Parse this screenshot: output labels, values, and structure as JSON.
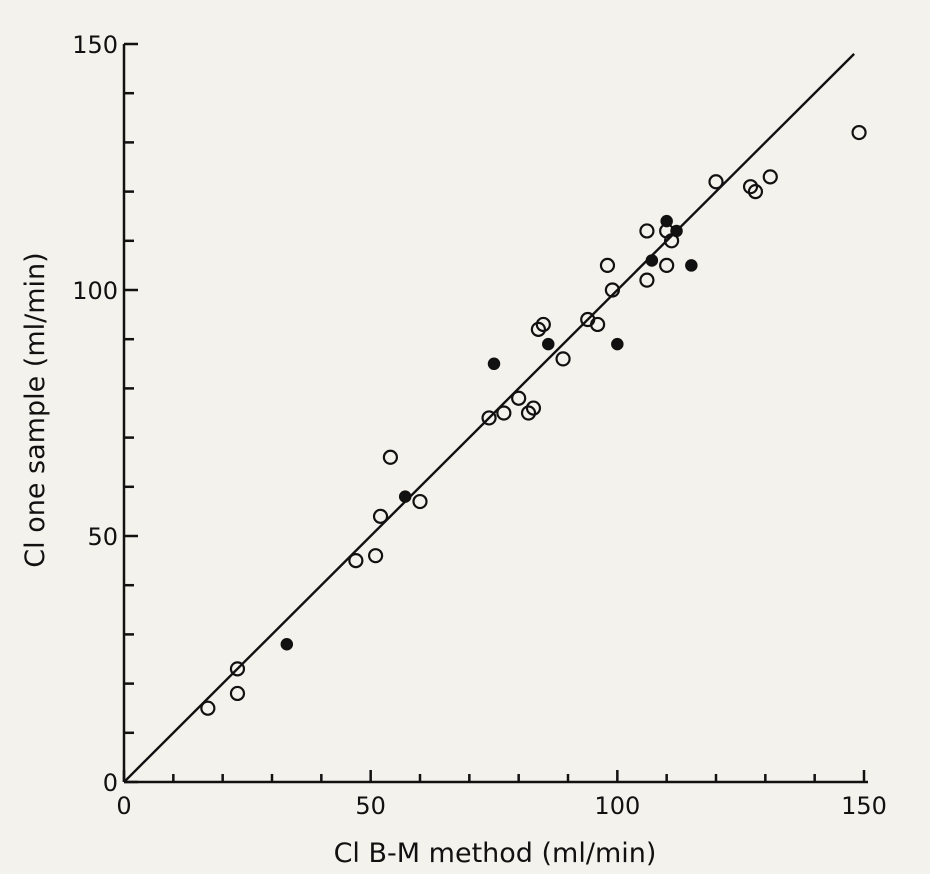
{
  "chart_data": {
    "type": "scatter",
    "xlabel": "Cl B-M method (ml/min)",
    "ylabel": "Cl one sample (ml/min)",
    "xlim": [
      0,
      150
    ],
    "ylim": [
      0,
      150
    ],
    "x_ticks": [
      0,
      50,
      100,
      150
    ],
    "y_ticks": [
      0,
      50,
      100,
      150
    ],
    "reference_line": {
      "from": [
        0,
        0
      ],
      "to": [
        148,
        148
      ]
    },
    "series": [
      {
        "marker": "open-circle",
        "points": [
          [
            17,
            15
          ],
          [
            23,
            18
          ],
          [
            23,
            23
          ],
          [
            47,
            45
          ],
          [
            51,
            46
          ],
          [
            52,
            54
          ],
          [
            54,
            66
          ],
          [
            60,
            57
          ],
          [
            74,
            74
          ],
          [
            77,
            75
          ],
          [
            80,
            78
          ],
          [
            82,
            75
          ],
          [
            83,
            76
          ],
          [
            84,
            92
          ],
          [
            85,
            93
          ],
          [
            89,
            86
          ],
          [
            94,
            94
          ],
          [
            96,
            93
          ],
          [
            98,
            105
          ],
          [
            99,
            100
          ],
          [
            106,
            102
          ],
          [
            106,
            112
          ],
          [
            110,
            105
          ],
          [
            110,
            112
          ],
          [
            111,
            110
          ],
          [
            120,
            122
          ],
          [
            127,
            121
          ],
          [
            128,
            120
          ],
          [
            131,
            123
          ],
          [
            149,
            132
          ]
        ]
      },
      {
        "marker": "filled-circle",
        "points": [
          [
            33,
            28
          ],
          [
            57,
            58
          ],
          [
            75,
            85
          ],
          [
            86,
            89
          ],
          [
            100,
            89
          ],
          [
            107,
            106
          ],
          [
            110,
            114
          ],
          [
            112,
            112
          ],
          [
            115,
            105
          ]
        ]
      }
    ]
  }
}
